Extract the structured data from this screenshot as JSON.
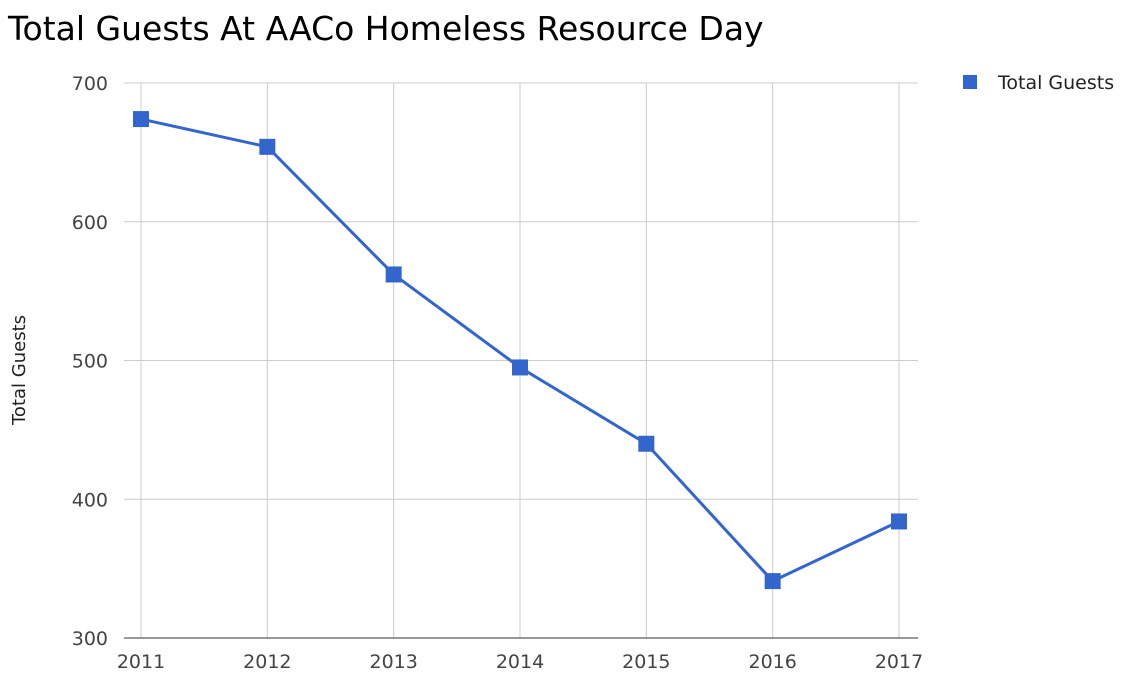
{
  "chart_data": {
    "type": "line",
    "title": "Total Guests At AACo Homeless Resource Day",
    "xlabel": "",
    "ylabel": "Total Guests",
    "categories": [
      "2011",
      "2012",
      "2013",
      "2014",
      "2015",
      "2016",
      "2017"
    ],
    "series": [
      {
        "name": "Total Guests",
        "values": [
          674,
          654,
          562,
          495,
          440,
          341,
          384
        ],
        "color": "#3366cc"
      }
    ],
    "ylim": [
      300,
      700
    ],
    "yticks": [
      "300",
      "400",
      "500",
      "600",
      "700"
    ],
    "grid": true,
    "legend_position": "right"
  }
}
